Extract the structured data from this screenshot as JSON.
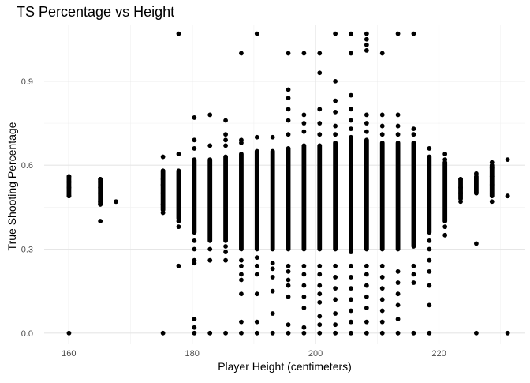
{
  "chart_data": {
    "type": "scatter",
    "title": "TS Percentage vs Height",
    "xlabel": "Player Height (centimeters)",
    "ylabel": "True Shooting Percentage",
    "xlim": [
      156,
      234
    ],
    "ylim": [
      -0.04,
      1.1
    ],
    "x_ticks": [
      160,
      180,
      200,
      220
    ],
    "x_minor_ticks": [
      170,
      190,
      210,
      230
    ],
    "y_ticks": [
      0.0,
      0.3,
      0.6,
      0.9
    ],
    "y_tick_labels": [
      "0.0",
      "0.3",
      "0.6",
      "0.9"
    ],
    "y_minor_ticks": [
      0.15,
      0.45,
      0.75,
      1.05
    ],
    "grid": true,
    "legend": "none",
    "point_color": "#000000",
    "columns": [
      {
        "x": 160.02,
        "lo": 0.49,
        "hi": 0.56,
        "zero": true,
        "points": [
          0.49,
          0.52,
          0.54,
          0.56
        ]
      },
      {
        "x": 165.1,
        "lo": 0.46,
        "hi": 0.55,
        "zero": false,
        "points": [
          0.4,
          0.46,
          0.47,
          0.5,
          0.52,
          0.54,
          0.55
        ]
      },
      {
        "x": 167.64,
        "lo": 0.47,
        "hi": 0.47,
        "zero": false,
        "points": [
          0.47
        ]
      },
      {
        "x": 175.26,
        "lo": 0.44,
        "hi": 0.58,
        "zero": true,
        "points": [
          0.43,
          0.46,
          0.5,
          0.53,
          0.55,
          0.58,
          0.63
        ]
      },
      {
        "x": 177.8,
        "lo": 0.41,
        "hi": 0.58,
        "zero": false,
        "points": [
          0.24,
          0.38,
          0.4,
          0.64,
          1.07
        ]
      },
      {
        "x": 180.34,
        "lo": 0.36,
        "hi": 0.62,
        "zero": true,
        "points": [
          0.02,
          0.05,
          0.25,
          0.26,
          0.3,
          0.33,
          0.66,
          0.69,
          0.77
        ]
      },
      {
        "x": 182.88,
        "lo": 0.33,
        "hi": 0.62,
        "zero": true,
        "points": [
          0.26,
          0.3,
          0.67,
          0.78
        ]
      },
      {
        "x": 185.42,
        "lo": 0.33,
        "hi": 0.63,
        "zero": true,
        "points": [
          0.26,
          0.29,
          0.31,
          0.67,
          0.69,
          0.71,
          0.76
        ]
      },
      {
        "x": 187.96,
        "lo": 0.3,
        "hi": 0.64,
        "zero": true,
        "points": [
          0.04,
          0.14,
          0.19,
          0.21,
          0.24,
          0.26,
          0.68,
          0.69,
          1.0
        ]
      },
      {
        "x": 190.5,
        "lo": 0.3,
        "hi": 0.65,
        "zero": true,
        "points": [
          0.04,
          0.14,
          0.21,
          0.24,
          0.27,
          0.7,
          1.07
        ]
      },
      {
        "x": 193.04,
        "lo": 0.3,
        "hi": 0.65,
        "zero": true,
        "points": [
          0.07,
          0.15,
          0.2,
          0.23,
          0.25,
          0.7
        ]
      },
      {
        "x": 195.58,
        "lo": 0.3,
        "hi": 0.66,
        "zero": true,
        "points": [
          0.03,
          0.13,
          0.17,
          0.19,
          0.22,
          0.24,
          0.71,
          0.76,
          0.8,
          0.84,
          0.87,
          1.0
        ]
      },
      {
        "x": 198.12,
        "lo": 0.3,
        "hi": 0.67,
        "zero": true,
        "points": [
          0.02,
          0.09,
          0.13,
          0.17,
          0.21,
          0.24,
          0.72,
          0.75,
          0.78,
          1.0
        ]
      },
      {
        "x": 200.66,
        "lo": 0.3,
        "hi": 0.67,
        "zero": true,
        "points": [
          0.03,
          0.06,
          0.11,
          0.14,
          0.17,
          0.21,
          0.24,
          0.71,
          0.75,
          0.8,
          0.93,
          1.0
        ]
      },
      {
        "x": 203.2,
        "lo": 0.3,
        "hi": 0.68,
        "zero": true,
        "points": [
          0.03,
          0.07,
          0.12,
          0.16,
          0.2,
          0.24,
          0.71,
          0.74,
          0.79,
          0.83,
          0.9,
          1.07
        ]
      },
      {
        "x": 205.74,
        "lo": 0.29,
        "hi": 0.7,
        "zero": true,
        "points": [
          0.04,
          0.08,
          0.12,
          0.16,
          0.2,
          0.24,
          0.73,
          0.76,
          0.8,
          0.85,
          1.0,
          1.07
        ]
      },
      {
        "x": 208.28,
        "lo": 0.3,
        "hi": 0.69,
        "zero": true,
        "points": [
          0.04,
          0.09,
          0.13,
          0.17,
          0.21,
          0.24,
          0.72,
          0.75,
          0.78,
          1.01,
          1.03,
          1.05,
          1.07
        ]
      },
      {
        "x": 210.82,
        "lo": 0.3,
        "hi": 0.68,
        "zero": true,
        "points": [
          0.04,
          0.08,
          0.12,
          0.16,
          0.2,
          0.24,
          0.71,
          0.74,
          0.78,
          1.0
        ]
      },
      {
        "x": 213.36,
        "lo": 0.3,
        "hi": 0.68,
        "zero": true,
        "points": [
          0.05,
          0.1,
          0.14,
          0.18,
          0.22,
          0.71,
          0.74,
          0.78,
          1.07
        ]
      },
      {
        "x": 215.9,
        "lo": 0.31,
        "hi": 0.68,
        "zero": true,
        "points": [
          0.18,
          0.21,
          0.24,
          0.71,
          0.73,
          1.07
        ]
      },
      {
        "x": 218.44,
        "lo": 0.36,
        "hi": 0.63,
        "zero": true,
        "points": [
          0.1,
          0.17,
          0.22,
          0.26,
          0.3,
          0.33,
          0.66
        ]
      },
      {
        "x": 220.98,
        "lo": 0.4,
        "hi": 0.61,
        "zero": false,
        "points": [
          0.35,
          0.38,
          0.62,
          0.64
        ]
      },
      {
        "x": 223.52,
        "lo": 0.48,
        "hi": 0.55,
        "zero": false,
        "points": [
          0.47,
          0.5,
          0.52,
          0.55
        ]
      },
      {
        "x": 226.06,
        "lo": 0.5,
        "hi": 0.56,
        "zero": true,
        "points": [
          0.32,
          0.5,
          0.57
        ]
      },
      {
        "x": 228.6,
        "lo": 0.49,
        "hi": 0.6,
        "zero": false,
        "points": [
          0.47,
          0.5,
          0.53,
          0.56,
          0.59,
          0.61
        ]
      },
      {
        "x": 231.14,
        "lo": 0.49,
        "hi": 0.49,
        "zero": true,
        "points": [
          0.49,
          0.62
        ]
      }
    ]
  }
}
